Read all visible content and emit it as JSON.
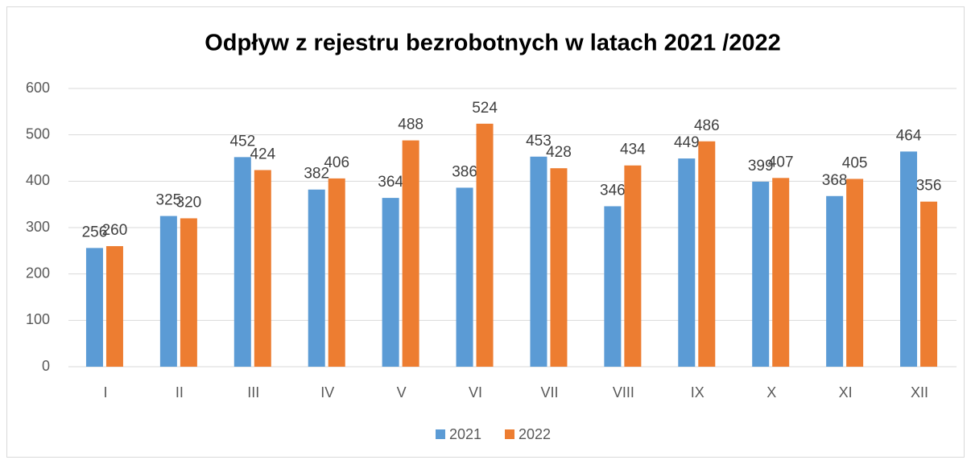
{
  "chart_data": {
    "type": "bar",
    "title": "Odpływ z rejestru bezrobotnych w latach 2021 /2022",
    "categories": [
      "I",
      "II",
      "III",
      "IV",
      "V",
      "VI",
      "VII",
      "VIII",
      "IX",
      "X",
      "XI",
      "XII"
    ],
    "series": [
      {
        "name": "2021",
        "color": "#5b9bd5",
        "values": [
          256,
          325,
          452,
          382,
          364,
          386,
          453,
          346,
          449,
          399,
          368,
          464
        ]
      },
      {
        "name": "2022",
        "color": "#ed7d31",
        "values": [
          260,
          320,
          424,
          406,
          488,
          524,
          428,
          434,
          486,
          407,
          405,
          356
        ]
      }
    ],
    "ylim": [
      0,
      600
    ],
    "yticks": [
      0,
      100,
      200,
      300,
      400,
      500,
      600
    ],
    "grid": true,
    "legend": "bottom"
  }
}
